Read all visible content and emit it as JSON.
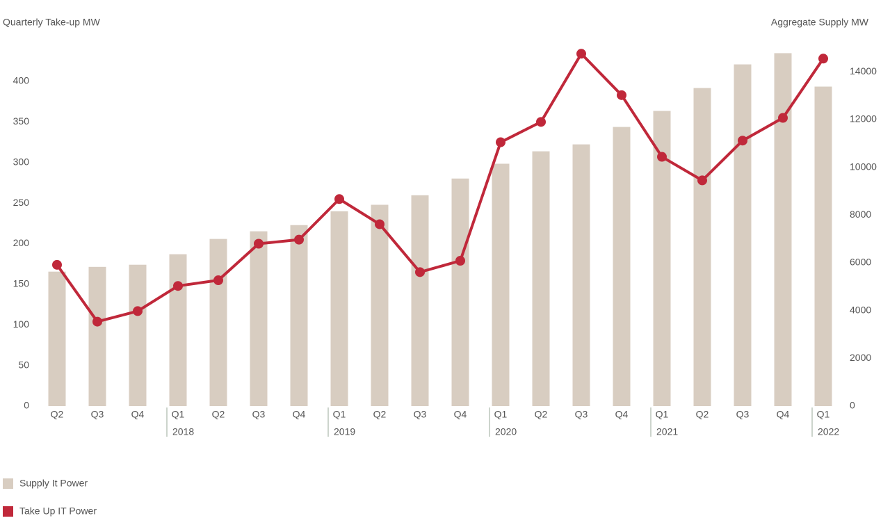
{
  "chart_data": {
    "type": "bar-line",
    "y_label": "Quarterly Take-up MW",
    "y2_label": "Aggregate Supply MW",
    "categories": [
      {
        "quarter": "Q2",
        "year": null
      },
      {
        "quarter": "Q3",
        "year": null
      },
      {
        "quarter": "Q4",
        "year": null
      },
      {
        "quarter": "Q1",
        "year": "2018"
      },
      {
        "quarter": "Q2",
        "year": null
      },
      {
        "quarter": "Q3",
        "year": null
      },
      {
        "quarter": "Q4",
        "year": null
      },
      {
        "quarter": "Q1",
        "year": "2019"
      },
      {
        "quarter": "Q2",
        "year": null
      },
      {
        "quarter": "Q3",
        "year": null
      },
      {
        "quarter": "Q4",
        "year": null
      },
      {
        "quarter": "Q1",
        "year": "2020"
      },
      {
        "quarter": "Q2",
        "year": null
      },
      {
        "quarter": "Q3",
        "year": null
      },
      {
        "quarter": "Q4",
        "year": null
      },
      {
        "quarter": "Q1",
        "year": "2021"
      },
      {
        "quarter": "Q2",
        "year": null
      },
      {
        "quarter": "Q3",
        "year": null
      },
      {
        "quarter": "Q4",
        "year": null
      },
      {
        "quarter": "Q1",
        "year": "2022"
      }
    ],
    "series": [
      {
        "name": "Supply It Power",
        "type": "bar",
        "axis": "y2",
        "color": "#d8cdc1",
        "values": [
          5630,
          5830,
          5920,
          6360,
          7000,
          7320,
          7580,
          8160,
          8430,
          8830,
          9530,
          10150,
          10670,
          10960,
          11690,
          12360,
          13320,
          14310,
          14780,
          13380
        ]
      },
      {
        "name": "Take Up IT Power",
        "type": "line",
        "axis": "y",
        "color": "#c0283a",
        "values": [
          174,
          104,
          117,
          148,
          155,
          200,
          205,
          255,
          224,
          165,
          179,
          325,
          350,
          434,
          383,
          307,
          278,
          327,
          355,
          428
        ]
      }
    ],
    "ylim": [
      0,
      450
    ],
    "yticks": [
      0,
      50,
      100,
      150,
      200,
      250,
      300,
      350,
      400
    ],
    "y2lim": [
      0,
      15300
    ],
    "y2ticks": [
      0,
      2000,
      4000,
      6000,
      8000,
      10000,
      12000,
      14000
    ],
    "grid": false
  }
}
